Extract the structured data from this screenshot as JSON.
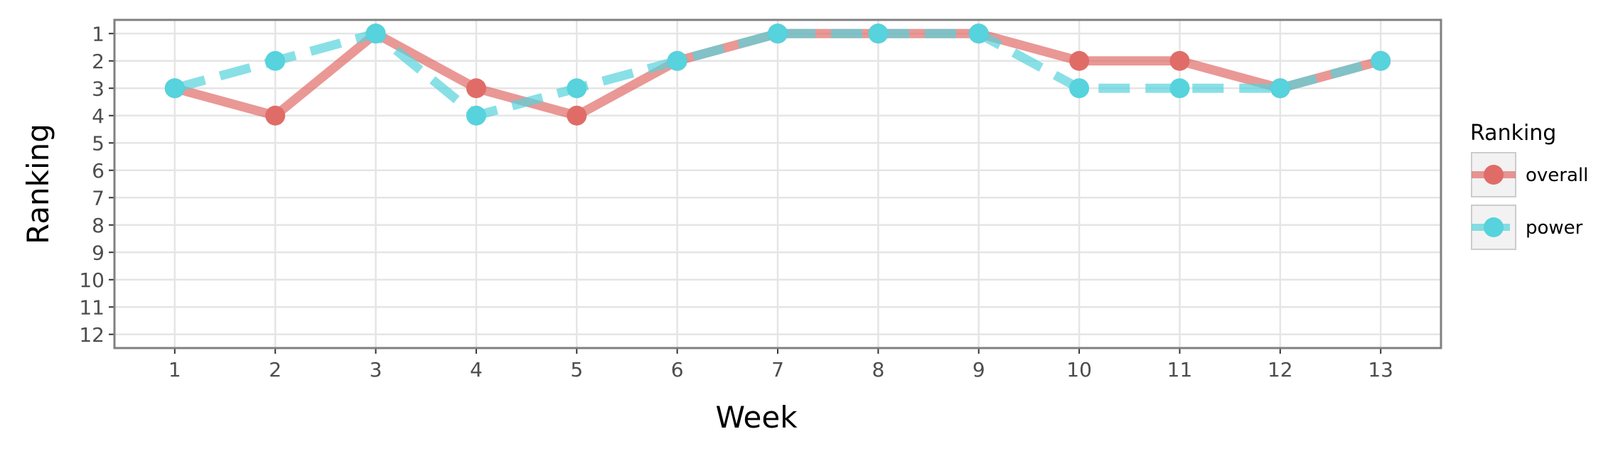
{
  "chart_data": {
    "type": "line",
    "xlabel": "Week",
    "ylabel": "Ranking",
    "x": [
      1,
      2,
      3,
      4,
      5,
      6,
      7,
      8,
      9,
      10,
      11,
      12,
      13
    ],
    "xticks": [
      "1",
      "2",
      "3",
      "4",
      "5",
      "6",
      "7",
      "8",
      "9",
      "10",
      "11",
      "12",
      "13"
    ],
    "yticks": [
      "1",
      "2",
      "3",
      "4",
      "5",
      "6",
      "7",
      "8",
      "9",
      "10",
      "11",
      "12"
    ],
    "xlim": [
      0.4,
      13.6
    ],
    "ylim": [
      12.5,
      0.5
    ],
    "y_reversed": true,
    "grid": true,
    "legend": {
      "title": "Ranking",
      "position": "right"
    },
    "series": [
      {
        "name": "overall",
        "values": [
          3,
          4,
          1,
          3,
          4,
          2,
          1,
          1,
          1,
          2,
          2,
          3,
          2
        ],
        "color": "#e06c68",
        "line_style": "solid"
      },
      {
        "name": "power",
        "values": [
          3,
          2,
          1,
          4,
          3,
          2,
          1,
          1,
          1,
          3,
          3,
          3,
          2
        ],
        "color": "#56d3dc",
        "line_style": "dashed"
      }
    ]
  }
}
